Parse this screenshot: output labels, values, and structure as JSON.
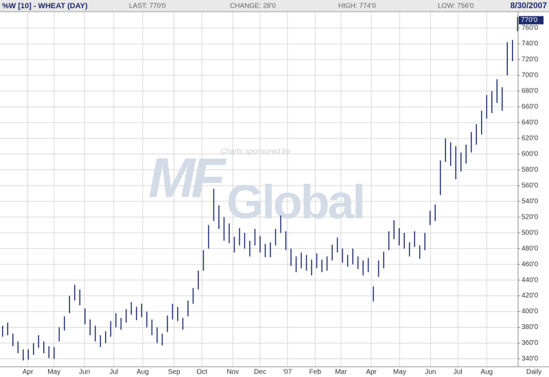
{
  "header": {
    "title": "%W [10] - WHEAT (DAY)",
    "last": "LAST: 770'0",
    "change": "CHANGE: 28'0",
    "high": "HIGH: 774'0",
    "low": "LOW: 756'0",
    "date": "8/30/2007"
  },
  "watermark": {
    "sponsor": "Charts sponsored by",
    "brand_1": "MF",
    "brand_2": "Global"
  },
  "chart_data": {
    "type": "hlbar",
    "color": "#1c2a6e",
    "grid": true,
    "x_note": "Daily",
    "last_price": {
      "value": 770,
      "label": "770'0"
    },
    "ylim": [
      330,
      780
    ],
    "yticks": [
      {
        "value": 340,
        "label": "340'0"
      },
      {
        "value": 360,
        "label": "360'0"
      },
      {
        "value": 380,
        "label": "380'0"
      },
      {
        "value": 400,
        "label": "400'0"
      },
      {
        "value": 420,
        "label": "420'0"
      },
      {
        "value": 440,
        "label": "440'0"
      },
      {
        "value": 460,
        "label": "460'0"
      },
      {
        "value": 480,
        "label": "480'0"
      },
      {
        "value": 500,
        "label": "500'0"
      },
      {
        "value": 520,
        "label": "520'0"
      },
      {
        "value": 540,
        "label": "540'0"
      },
      {
        "value": 560,
        "label": "560'0"
      },
      {
        "value": 580,
        "label": "580'0"
      },
      {
        "value": 600,
        "label": "600'0"
      },
      {
        "value": 620,
        "label": "620'0"
      },
      {
        "value": 640,
        "label": "640'0"
      },
      {
        "value": 660,
        "label": "660'0"
      },
      {
        "value": 680,
        "label": "680'0"
      },
      {
        "value": 700,
        "label": "700'0"
      },
      {
        "value": 720,
        "label": "720'0"
      },
      {
        "value": 740,
        "label": "740'0"
      },
      {
        "value": 760,
        "label": "760'0"
      }
    ],
    "xlim": [
      -0.5,
      100.1
    ],
    "xticks": [
      {
        "value": 4.9,
        "label": "Apr"
      },
      {
        "value": 10,
        "label": "May"
      },
      {
        "value": 15.9,
        "label": "Jun"
      },
      {
        "value": 21.6,
        "label": "Jul"
      },
      {
        "value": 27.2,
        "label": "Aug"
      },
      {
        "value": 33.3,
        "label": "Sep"
      },
      {
        "value": 38.7,
        "label": "Oct"
      },
      {
        "value": 44.7,
        "label": "Nov"
      },
      {
        "value": 50,
        "label": "Dec"
      },
      {
        "value": 55.3,
        "label": "'07"
      },
      {
        "value": 60.7,
        "label": "Feb"
      },
      {
        "value": 65.7,
        "label": "Mar"
      },
      {
        "value": 71.6,
        "label": "Apr"
      },
      {
        "value": 77.1,
        "label": "May"
      },
      {
        "value": 83.1,
        "label": "Jun"
      },
      {
        "value": 88.4,
        "label": "Jul"
      },
      {
        "value": 94,
        "label": "Aug"
      }
    ],
    "high": [
      382,
      386,
      372,
      362,
      352,
      352,
      360,
      370,
      362,
      356,
      355,
      380,
      394,
      420,
      434,
      428,
      404,
      390,
      382,
      370,
      375,
      388,
      398,
      392,
      403,
      412,
      406,
      410,
      400,
      390,
      380,
      372,
      395,
      410,
      406,
      392,
      414,
      430,
      452,
      478,
      510,
      556,
      535,
      520,
      512,
      495,
      506,
      500,
      490,
      505,
      496,
      486,
      488,
      505,
      522,
      502,
      480,
      470,
      475,
      472,
      466,
      474,
      466,
      470,
      485,
      494,
      480,
      472,
      480,
      470,
      465,
      468,
      432,
      465,
      476,
      502,
      516,
      506,
      500,
      488,
      502,
      484,
      500,
      528,
      536,
      592,
      620,
      615,
      610,
      602,
      612,
      628,
      638,
      655,
      675,
      680,
      695,
      685,
      742,
      745,
      774
    ],
    "low": [
      368,
      370,
      356,
      347,
      338,
      339,
      345,
      354,
      347,
      341,
      340,
      362,
      376,
      398,
      414,
      408,
      384,
      370,
      362,
      355,
      360,
      368,
      380,
      377,
      386,
      396,
      389,
      393,
      380,
      370,
      360,
      357,
      374,
      390,
      388,
      377,
      394,
      410,
      428,
      452,
      480,
      515,
      505,
      490,
      487,
      475,
      484,
      480,
      470,
      484,
      475,
      469,
      469,
      484,
      500,
      478,
      458,
      450,
      455,
      452,
      446,
      455,
      450,
      452,
      465,
      475,
      462,
      457,
      460,
      454,
      446,
      450,
      413,
      444,
      455,
      478,
      492,
      484,
      480,
      470,
      482,
      467,
      478,
      510,
      515,
      548,
      590,
      585,
      568,
      578,
      588,
      602,
      612,
      625,
      645,
      652,
      665,
      655,
      700,
      718,
      756
    ]
  }
}
